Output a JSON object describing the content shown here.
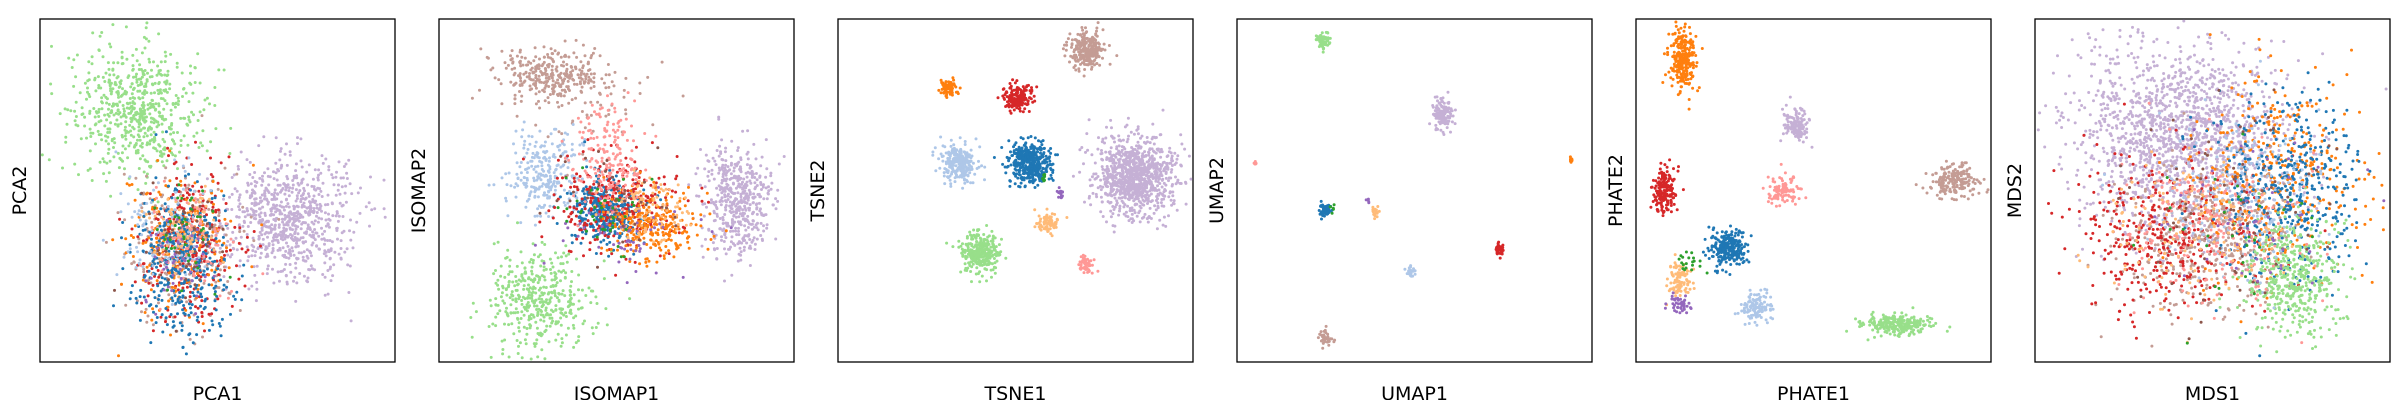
{
  "palette": {
    "c0": "#1f77b4",
    "c1": "#aec7e8",
    "c2": "#ff7f0e",
    "c3": "#ffbb78",
    "c4": "#2ca02c",
    "c5": "#98df8a",
    "c6": "#d62728",
    "c7": "#ff9896",
    "c8": "#9467bd",
    "c9": "#c5b0d5",
    "c10": "#8c564b",
    "c11": "#c49c94"
  },
  "chart_data": [
    {
      "type": "scatter",
      "xlabel": "PCA1",
      "ylabel": "PCA2",
      "ticks": "none",
      "grid": false,
      "legend": "none",
      "clusters": [
        {
          "color": "c5",
          "cx": 0.27,
          "cy": 0.73,
          "sx": 0.09,
          "sy": 0.09,
          "n": 620
        },
        {
          "color": "c9",
          "cx": 0.7,
          "cy": 0.42,
          "sx": 0.09,
          "sy": 0.09,
          "n": 780
        },
        {
          "color": "c11",
          "cx": 0.4,
          "cy": 0.34,
          "sx": 0.08,
          "sy": 0.11,
          "n": 260
        },
        {
          "color": "c6",
          "cx": 0.42,
          "cy": 0.36,
          "sx": 0.07,
          "sy": 0.11,
          "n": 260
        },
        {
          "color": "c2",
          "cx": 0.38,
          "cy": 0.35,
          "sx": 0.07,
          "sy": 0.11,
          "n": 200
        },
        {
          "color": "c0",
          "cx": 0.4,
          "cy": 0.3,
          "sx": 0.07,
          "sy": 0.11,
          "n": 380
        },
        {
          "color": "c1",
          "cx": 0.36,
          "cy": 0.4,
          "sx": 0.06,
          "sy": 0.08,
          "n": 110
        },
        {
          "color": "c3",
          "cx": 0.4,
          "cy": 0.38,
          "sx": 0.05,
          "sy": 0.07,
          "n": 80
        },
        {
          "color": "c7",
          "cx": 0.44,
          "cy": 0.34,
          "sx": 0.06,
          "sy": 0.08,
          "n": 80
        },
        {
          "color": "c8",
          "cx": 0.38,
          "cy": 0.3,
          "sx": 0.05,
          "sy": 0.08,
          "n": 50
        },
        {
          "color": "c10",
          "cx": 0.4,
          "cy": 0.36,
          "sx": 0.06,
          "sy": 0.08,
          "n": 50
        },
        {
          "color": "c4",
          "cx": 0.42,
          "cy": 0.38,
          "sx": 0.05,
          "sy": 0.07,
          "n": 40
        }
      ]
    },
    {
      "type": "scatter",
      "xlabel": "ISOMAP1",
      "ylabel": "ISOMAP2",
      "ticks": "none",
      "grid": false,
      "legend": "none",
      "clusters": [
        {
          "color": "c11",
          "cx": 0.32,
          "cy": 0.84,
          "sx": 0.08,
          "sy": 0.04,
          "n": 300
        },
        {
          "color": "c11",
          "cx": 0.4,
          "cy": 0.76,
          "sx": 0.12,
          "sy": 0.08,
          "n": 60
        },
        {
          "color": "c5",
          "cx": 0.28,
          "cy": 0.18,
          "sx": 0.07,
          "sy": 0.07,
          "n": 420
        },
        {
          "color": "c1",
          "cx": 0.3,
          "cy": 0.55,
          "sx": 0.05,
          "sy": 0.06,
          "n": 260
        },
        {
          "color": "c9",
          "cx": 0.84,
          "cy": 0.47,
          "sx": 0.05,
          "sy": 0.08,
          "n": 480
        },
        {
          "color": "c0",
          "cx": 0.47,
          "cy": 0.44,
          "sx": 0.05,
          "sy": 0.05,
          "n": 380
        },
        {
          "color": "c6",
          "cx": 0.5,
          "cy": 0.46,
          "sx": 0.09,
          "sy": 0.07,
          "n": 280
        },
        {
          "color": "c2",
          "cx": 0.6,
          "cy": 0.4,
          "sx": 0.07,
          "sy": 0.05,
          "n": 260
        },
        {
          "color": "c7",
          "cx": 0.48,
          "cy": 0.58,
          "sx": 0.05,
          "sy": 0.08,
          "n": 200
        },
        {
          "color": "c3",
          "cx": 0.6,
          "cy": 0.45,
          "sx": 0.06,
          "sy": 0.05,
          "n": 100
        },
        {
          "color": "c8",
          "cx": 0.52,
          "cy": 0.38,
          "sx": 0.08,
          "sy": 0.06,
          "n": 60
        },
        {
          "color": "c4",
          "cx": 0.46,
          "cy": 0.44,
          "sx": 0.06,
          "sy": 0.06,
          "n": 40
        },
        {
          "color": "c10",
          "cx": 0.5,
          "cy": 0.45,
          "sx": 0.08,
          "sy": 0.08,
          "n": 40
        }
      ]
    },
    {
      "type": "scatter",
      "xlabel": "TSNE1",
      "ylabel": "TSNE2",
      "ticks": "none",
      "grid": false,
      "legend": "none",
      "clusters": [
        {
          "color": "c11",
          "cx": 0.7,
          "cy": 0.91,
          "sx": 0.025,
          "sy": 0.027,
          "n": 260
        },
        {
          "color": "c2",
          "cx": 0.31,
          "cy": 0.8,
          "sx": 0.013,
          "sy": 0.013,
          "n": 70
        },
        {
          "color": "c6",
          "cx": 0.51,
          "cy": 0.77,
          "sx": 0.02,
          "sy": 0.02,
          "n": 160
        },
        {
          "color": "c1",
          "cx": 0.34,
          "cy": 0.58,
          "sx": 0.025,
          "sy": 0.027,
          "n": 260
        },
        {
          "color": "c0",
          "cx": 0.54,
          "cy": 0.58,
          "sx": 0.03,
          "sy": 0.03,
          "n": 420
        },
        {
          "color": "c9",
          "cx": 0.84,
          "cy": 0.54,
          "sx": 0.055,
          "sy": 0.055,
          "n": 1000
        },
        {
          "color": "c3",
          "cx": 0.59,
          "cy": 0.41,
          "sx": 0.015,
          "sy": 0.016,
          "n": 80
        },
        {
          "color": "c5",
          "cx": 0.4,
          "cy": 0.32,
          "sx": 0.027,
          "sy": 0.029,
          "n": 300
        },
        {
          "color": "c7",
          "cx": 0.7,
          "cy": 0.28,
          "sx": 0.01,
          "sy": 0.012,
          "n": 50
        },
        {
          "color": "c8",
          "cx": 0.63,
          "cy": 0.49,
          "sx": 0.006,
          "sy": 0.008,
          "n": 18
        },
        {
          "color": "c4",
          "cx": 0.58,
          "cy": 0.54,
          "sx": 0.005,
          "sy": 0.006,
          "n": 10
        }
      ]
    },
    {
      "type": "scatter",
      "xlabel": "UMAP1",
      "ylabel": "UMAP2",
      "ticks": "none",
      "grid": false,
      "legend": "none",
      "clusters": [
        {
          "color": "c5",
          "cx": 0.24,
          "cy": 0.94,
          "sx": 0.01,
          "sy": 0.012,
          "n": 60
        },
        {
          "color": "c9",
          "cx": 0.58,
          "cy": 0.72,
          "sx": 0.014,
          "sy": 0.022,
          "n": 140
        },
        {
          "color": "c7",
          "cx": 0.05,
          "cy": 0.58,
          "sx": 0.002,
          "sy": 0.004,
          "n": 8
        },
        {
          "color": "c2",
          "cx": 0.94,
          "cy": 0.59,
          "sx": 0.003,
          "sy": 0.006,
          "n": 10
        },
        {
          "color": "c0",
          "cx": 0.25,
          "cy": 0.44,
          "sx": 0.008,
          "sy": 0.01,
          "n": 60
        },
        {
          "color": "c4",
          "cx": 0.27,
          "cy": 0.45,
          "sx": 0.004,
          "sy": 0.006,
          "n": 6
        },
        {
          "color": "c3",
          "cx": 0.39,
          "cy": 0.44,
          "sx": 0.005,
          "sy": 0.008,
          "n": 20
        },
        {
          "color": "c8",
          "cx": 0.37,
          "cy": 0.47,
          "sx": 0.003,
          "sy": 0.005,
          "n": 5
        },
        {
          "color": "c6",
          "cx": 0.74,
          "cy": 0.33,
          "sx": 0.006,
          "sy": 0.01,
          "n": 40
        },
        {
          "color": "c1",
          "cx": 0.49,
          "cy": 0.26,
          "sx": 0.006,
          "sy": 0.01,
          "n": 30
        },
        {
          "color": "c11",
          "cx": 0.25,
          "cy": 0.07,
          "sx": 0.008,
          "sy": 0.012,
          "n": 40
        }
      ]
    },
    {
      "type": "scatter",
      "xlabel": "PHATE1",
      "ylabel": "PHATE2",
      "ticks": "none",
      "grid": false,
      "legend": "none",
      "clusters": [
        {
          "color": "c2",
          "cx": 0.13,
          "cy": 0.88,
          "sx": 0.018,
          "sy": 0.045,
          "n": 260
        },
        {
          "color": "c9",
          "cx": 0.45,
          "cy": 0.69,
          "sx": 0.018,
          "sy": 0.025,
          "n": 130
        },
        {
          "color": "c6",
          "cx": 0.08,
          "cy": 0.5,
          "sx": 0.016,
          "sy": 0.03,
          "n": 180
        },
        {
          "color": "c7",
          "cx": 0.42,
          "cy": 0.5,
          "sx": 0.022,
          "sy": 0.02,
          "n": 100
        },
        {
          "color": "c11",
          "cx": 0.9,
          "cy": 0.53,
          "sx": 0.03,
          "sy": 0.025,
          "n": 200
        },
        {
          "color": "c0",
          "cx": 0.26,
          "cy": 0.33,
          "sx": 0.025,
          "sy": 0.025,
          "n": 260
        },
        {
          "color": "c3",
          "cx": 0.12,
          "cy": 0.24,
          "sx": 0.018,
          "sy": 0.022,
          "n": 100
        },
        {
          "color": "c1",
          "cx": 0.34,
          "cy": 0.16,
          "sx": 0.025,
          "sy": 0.022,
          "n": 120
        },
        {
          "color": "c5",
          "cx": 0.74,
          "cy": 0.11,
          "sx": 0.05,
          "sy": 0.015,
          "n": 260
        },
        {
          "color": "c8",
          "cx": 0.12,
          "cy": 0.17,
          "sx": 0.015,
          "sy": 0.015,
          "n": 40
        },
        {
          "color": "c4",
          "cx": 0.15,
          "cy": 0.3,
          "sx": 0.02,
          "sy": 0.02,
          "n": 20
        }
      ]
    },
    {
      "type": "scatter",
      "xlabel": "MDS1",
      "ylabel": "MDS2",
      "ticks": "none",
      "grid": false,
      "legend": "none",
      "clusters": [
        {
          "color": "c9",
          "cx": 0.4,
          "cy": 0.66,
          "sx": 0.15,
          "sy": 0.13,
          "n": 1500
        },
        {
          "color": "c11",
          "cx": 0.48,
          "cy": 0.36,
          "sx": 0.12,
          "sy": 0.11,
          "n": 450
        },
        {
          "color": "c6",
          "cx": 0.36,
          "cy": 0.38,
          "sx": 0.13,
          "sy": 0.11,
          "n": 380
        },
        {
          "color": "c2",
          "cx": 0.68,
          "cy": 0.54,
          "sx": 0.12,
          "sy": 0.15,
          "n": 360
        },
        {
          "color": "c0",
          "cx": 0.72,
          "cy": 0.5,
          "sx": 0.1,
          "sy": 0.14,
          "n": 460
        },
        {
          "color": "c5",
          "cx": 0.72,
          "cy": 0.25,
          "sx": 0.07,
          "sy": 0.09,
          "n": 460
        },
        {
          "color": "c1",
          "cx": 0.58,
          "cy": 0.48,
          "sx": 0.12,
          "sy": 0.12,
          "n": 220
        },
        {
          "color": "c7",
          "cx": 0.5,
          "cy": 0.4,
          "sx": 0.13,
          "sy": 0.12,
          "n": 200
        },
        {
          "color": "c3",
          "cx": 0.45,
          "cy": 0.38,
          "sx": 0.12,
          "sy": 0.12,
          "n": 140
        },
        {
          "color": "c10",
          "cx": 0.55,
          "cy": 0.44,
          "sx": 0.14,
          "sy": 0.14,
          "n": 80
        },
        {
          "color": "c8",
          "cx": 0.62,
          "cy": 0.44,
          "sx": 0.12,
          "sy": 0.12,
          "n": 50
        },
        {
          "color": "c4",
          "cx": 0.55,
          "cy": 0.4,
          "sx": 0.12,
          "sy": 0.12,
          "n": 30
        }
      ]
    }
  ]
}
